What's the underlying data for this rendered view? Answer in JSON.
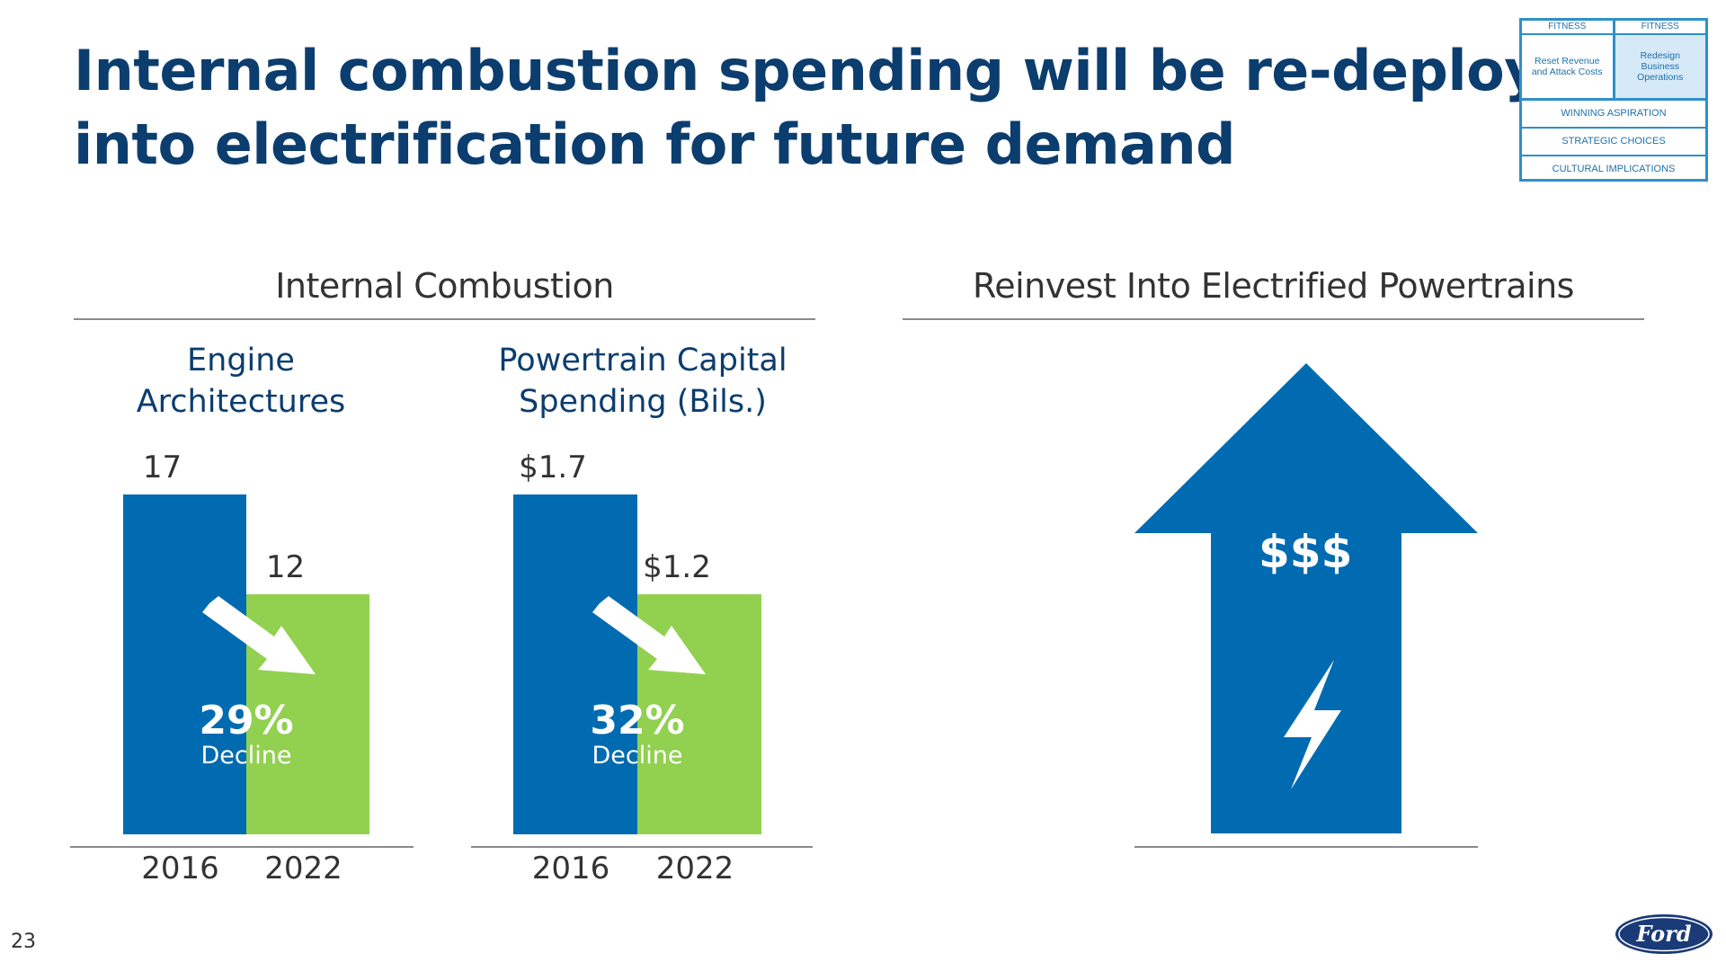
{
  "slide": {
    "title_line1": "Internal combustion spending will be re-deployed",
    "title_line2": "into electrification for future demand",
    "page_number": "23",
    "logo_text": "Ford"
  },
  "framework": {
    "col1_header": "FITNESS",
    "col1_body": "Reset Revenue and Attack Costs",
    "col2_header": "FITNESS",
    "col2_body": "Redesign Business Operations",
    "rows": [
      "WINNING ASPIRATION",
      "STRATEGIC CHOICES",
      "CULTURAL IMPLICATIONS"
    ]
  },
  "sections": {
    "left": "Internal Combustion",
    "right": "Reinvest Into Electrified Powertrains"
  },
  "chart_data": [
    {
      "type": "bar",
      "title": "Engine Architectures",
      "title_line1": "Engine",
      "title_line2": "Architectures",
      "categories": [
        "2016",
        "2022"
      ],
      "values": [
        17,
        12
      ],
      "value_labels": [
        "17",
        "12"
      ],
      "colors": [
        "#006bb0",
        "#92d050"
      ],
      "annotation_pct": "29%",
      "annotation_word": "Decline"
    },
    {
      "type": "bar",
      "title": "Powertrain Capital Spending (Bils.)",
      "title_line1": "Powertrain Capital",
      "title_line2": "Spending (Bils.)",
      "categories": [
        "2016",
        "2022"
      ],
      "values": [
        1.7,
        1.2
      ],
      "value_labels": [
        "$1.7",
        "$1.2"
      ],
      "colors": [
        "#006bb0",
        "#92d050"
      ],
      "annotation_pct": "32%",
      "annotation_word": "Decline"
    }
  ],
  "reinvest": {
    "label": "$$$",
    "arrow_color": "#006bb0",
    "icon": "lightning-bolt-icon"
  }
}
